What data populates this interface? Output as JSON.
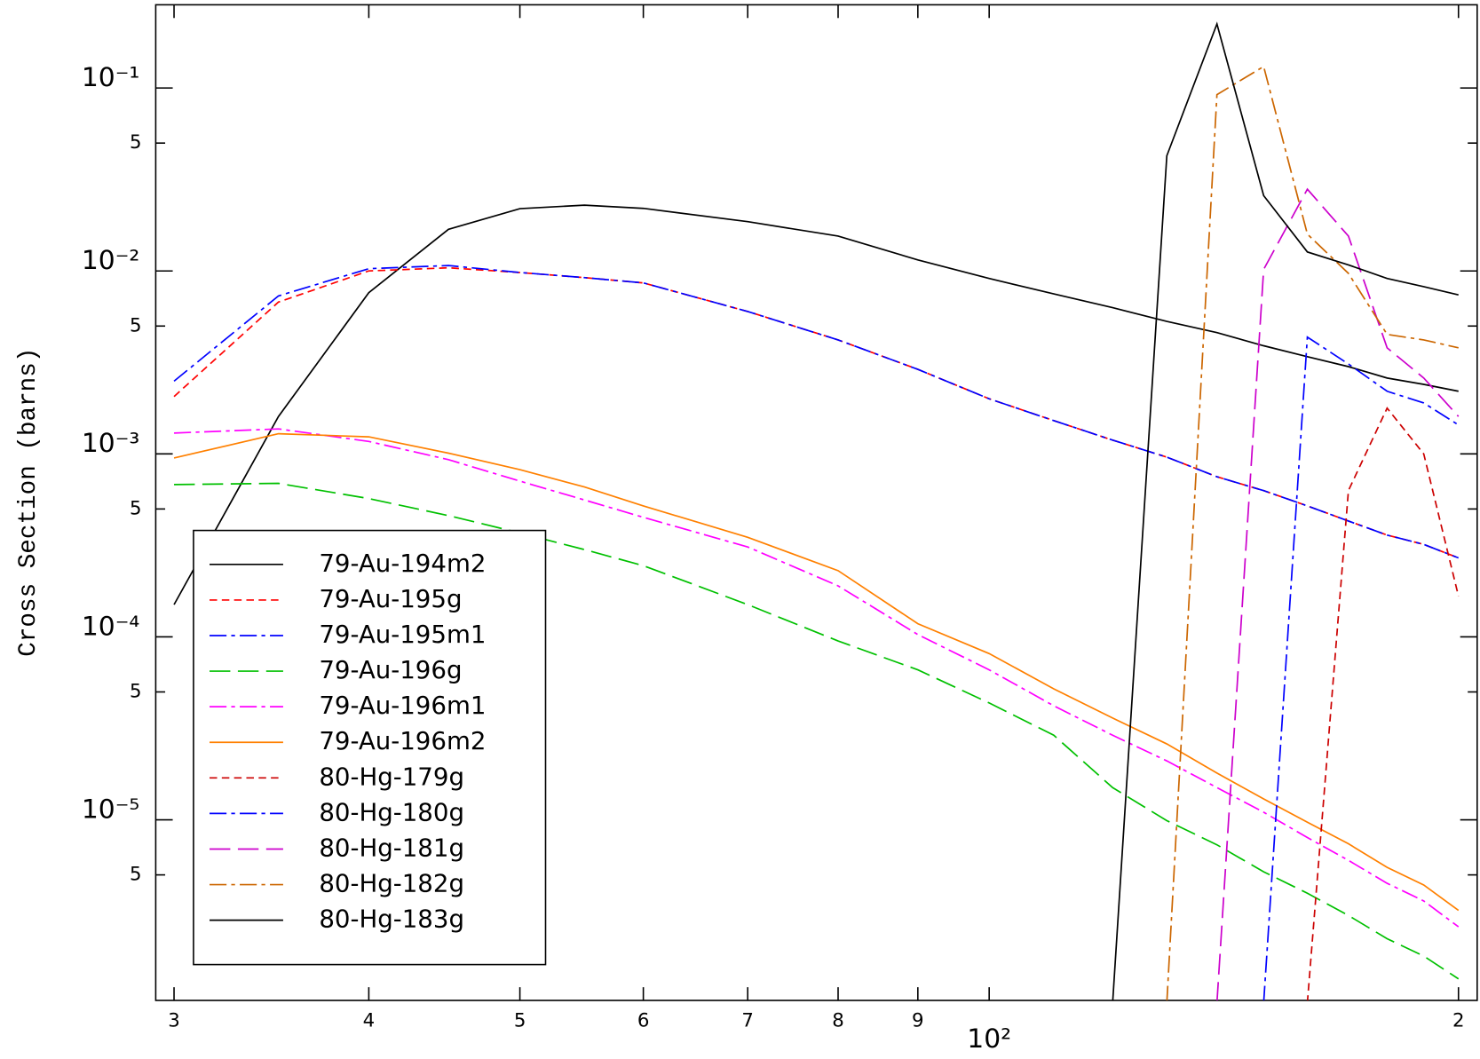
{
  "chart_data": {
    "type": "line",
    "y_label": "Cross Section (barns)",
    "log_x": true,
    "log_y": true,
    "xlim": [
      29.2,
      205.6
    ],
    "ylim": [
      1.03e-06,
      0.285
    ],
    "xticks": [
      {
        "value": 30,
        "label": "3"
      },
      {
        "value": 40,
        "label": "4"
      },
      {
        "value": 50,
        "label": "5"
      },
      {
        "value": 60,
        "label": "6"
      },
      {
        "value": 70,
        "label": "7"
      },
      {
        "value": 80,
        "label": "8"
      },
      {
        "value": 90,
        "label": "9"
      },
      {
        "value": 100,
        "label": "10²"
      },
      {
        "value": 200,
        "label": "2"
      }
    ],
    "yticks": [
      {
        "value": 0.1,
        "label": "10⁻¹"
      },
      {
        "value": 0.05,
        "label": "5"
      },
      {
        "value": 0.01,
        "label": "10⁻²"
      },
      {
        "value": 0.005,
        "label": "5"
      },
      {
        "value": 0.001,
        "label": "10⁻³"
      },
      {
        "value": 0.0005,
        "label": "5"
      },
      {
        "value": 0.0001,
        "label": "10⁻⁴"
      },
      {
        "value": 5e-05,
        "label": "5"
      },
      {
        "value": 1e-05,
        "label": "10⁻⁵"
      },
      {
        "value": 5e-06,
        "label": "5"
      }
    ],
    "x": [
      30,
      35,
      40,
      45,
      50,
      55,
      60,
      70,
      80,
      90,
      100,
      110,
      120,
      130,
      140,
      150,
      160,
      170,
      180,
      190,
      200
    ],
    "series": [
      {
        "name": "79-Au-194m2",
        "color": "#000000",
        "dash": "solid",
        "values": [
          0.00015,
          0.0016,
          0.0076,
          0.0169,
          0.0219,
          0.0229,
          0.022,
          0.0186,
          0.0155,
          0.0115,
          0.0091,
          0.0075,
          0.0063,
          0.0053,
          0.0046,
          0.0039,
          0.0034,
          0.003,
          0.0026,
          0.0024,
          0.0022
        ]
      },
      {
        "name": "79-Au-195g",
        "color": "#ff0000",
        "dash": "dashed",
        "values": [
          0.00206,
          0.00676,
          0.01,
          0.0104,
          0.0098,
          0.0092,
          0.0086,
          0.006,
          0.0042,
          0.0029,
          0.002,
          0.00152,
          0.00119,
          0.00096,
          0.00075,
          0.00063,
          0.00052,
          0.00043,
          0.00036,
          0.00032,
          0.00027
        ]
      },
      {
        "name": "79-Au-195m1",
        "color": "#0000ff",
        "dash": "dashdot",
        "values": [
          0.0025,
          0.0073,
          0.0103,
          0.0107,
          0.0098,
          0.0092,
          0.0086,
          0.006,
          0.0042,
          0.0029,
          0.002,
          0.00152,
          0.00119,
          0.00096,
          0.00075,
          0.00063,
          0.00052,
          0.00043,
          0.00036,
          0.00032,
          0.00027
        ]
      },
      {
        "name": "79-Au-196g",
        "color": "#00c000",
        "dash": "longdash",
        "values": [
          0.00068,
          0.00069,
          0.00057,
          0.00046,
          0.00037,
          0.0003,
          0.000245,
          0.00015,
          9.5e-05,
          6.6e-05,
          4.35e-05,
          2.9e-05,
          1.5e-05,
          9.9e-06,
          7.3e-06,
          5.2e-06,
          3.97e-06,
          3e-06,
          2.24e-06,
          1.8e-06,
          1.35e-06
        ]
      },
      {
        "name": "79-Au-196m1",
        "color": "#ff00ff",
        "dash": "dashdot",
        "values": [
          0.0013,
          0.00137,
          0.00117,
          0.00093,
          0.00071,
          0.00056,
          0.00045,
          0.00031,
          0.00019,
          0.000103,
          6.6e-05,
          4.2e-05,
          2.9e-05,
          2.1e-05,
          1.5e-05,
          1.1e-05,
          8e-06,
          6e-06,
          4.5e-06,
          3.6e-06,
          2.6e-06
        ]
      },
      {
        "name": "79-Au-196m2",
        "color": "#ff8000",
        "dash": "solid",
        "values": [
          0.00095,
          0.00129,
          0.00124,
          0.00101,
          0.00082,
          0.00066,
          0.00052,
          0.00035,
          0.00023,
          0.000118,
          8.1e-05,
          5.2e-05,
          3.6e-05,
          2.6e-05,
          1.8e-05,
          1.3e-05,
          9.7e-06,
          7.4e-06,
          5.5e-06,
          4.4e-06,
          3.2e-06
        ]
      },
      {
        "name": "80-Hg-179g",
        "color": "#cc0000",
        "dash": "dashed",
        "values": [
          null,
          null,
          null,
          null,
          null,
          null,
          null,
          null,
          null,
          null,
          null,
          null,
          null,
          null,
          null,
          null,
          1e-06,
          0.00063,
          0.00178,
          0.001,
          0.000167
        ]
      },
      {
        "name": "80-Hg-180g",
        "color": "#0000ff",
        "dash": "dashdot",
        "values": [
          null,
          null,
          null,
          null,
          null,
          null,
          null,
          null,
          null,
          null,
          null,
          null,
          null,
          null,
          null,
          1e-06,
          0.00435,
          0.0031,
          0.0022,
          0.0019,
          0.00144
        ]
      },
      {
        "name": "80-Hg-181g",
        "color": "#cc00cc",
        "dash": "longdash",
        "values": [
          null,
          null,
          null,
          null,
          null,
          null,
          null,
          null,
          null,
          null,
          null,
          null,
          null,
          null,
          1e-06,
          0.0102,
          0.028,
          0.0155,
          0.0038,
          0.0026,
          0.0016
        ]
      },
      {
        "name": "80-Hg-182g",
        "color": "#cc6600",
        "dash": "dashdot",
        "values": [
          null,
          null,
          null,
          null,
          null,
          null,
          null,
          null,
          null,
          null,
          null,
          null,
          null,
          1e-06,
          0.092,
          0.131,
          0.0159,
          0.0097,
          0.0045,
          0.0042,
          0.0038
        ]
      },
      {
        "name": "80-Hg-183g",
        "color": "#000000",
        "dash": "solid",
        "values": [
          null,
          null,
          null,
          null,
          null,
          null,
          null,
          null,
          null,
          null,
          null,
          null,
          1e-06,
          0.0426,
          0.224,
          0.0258,
          0.0127,
          0.0108,
          0.0091,
          0.0082,
          0.0074
        ]
      }
    ]
  }
}
